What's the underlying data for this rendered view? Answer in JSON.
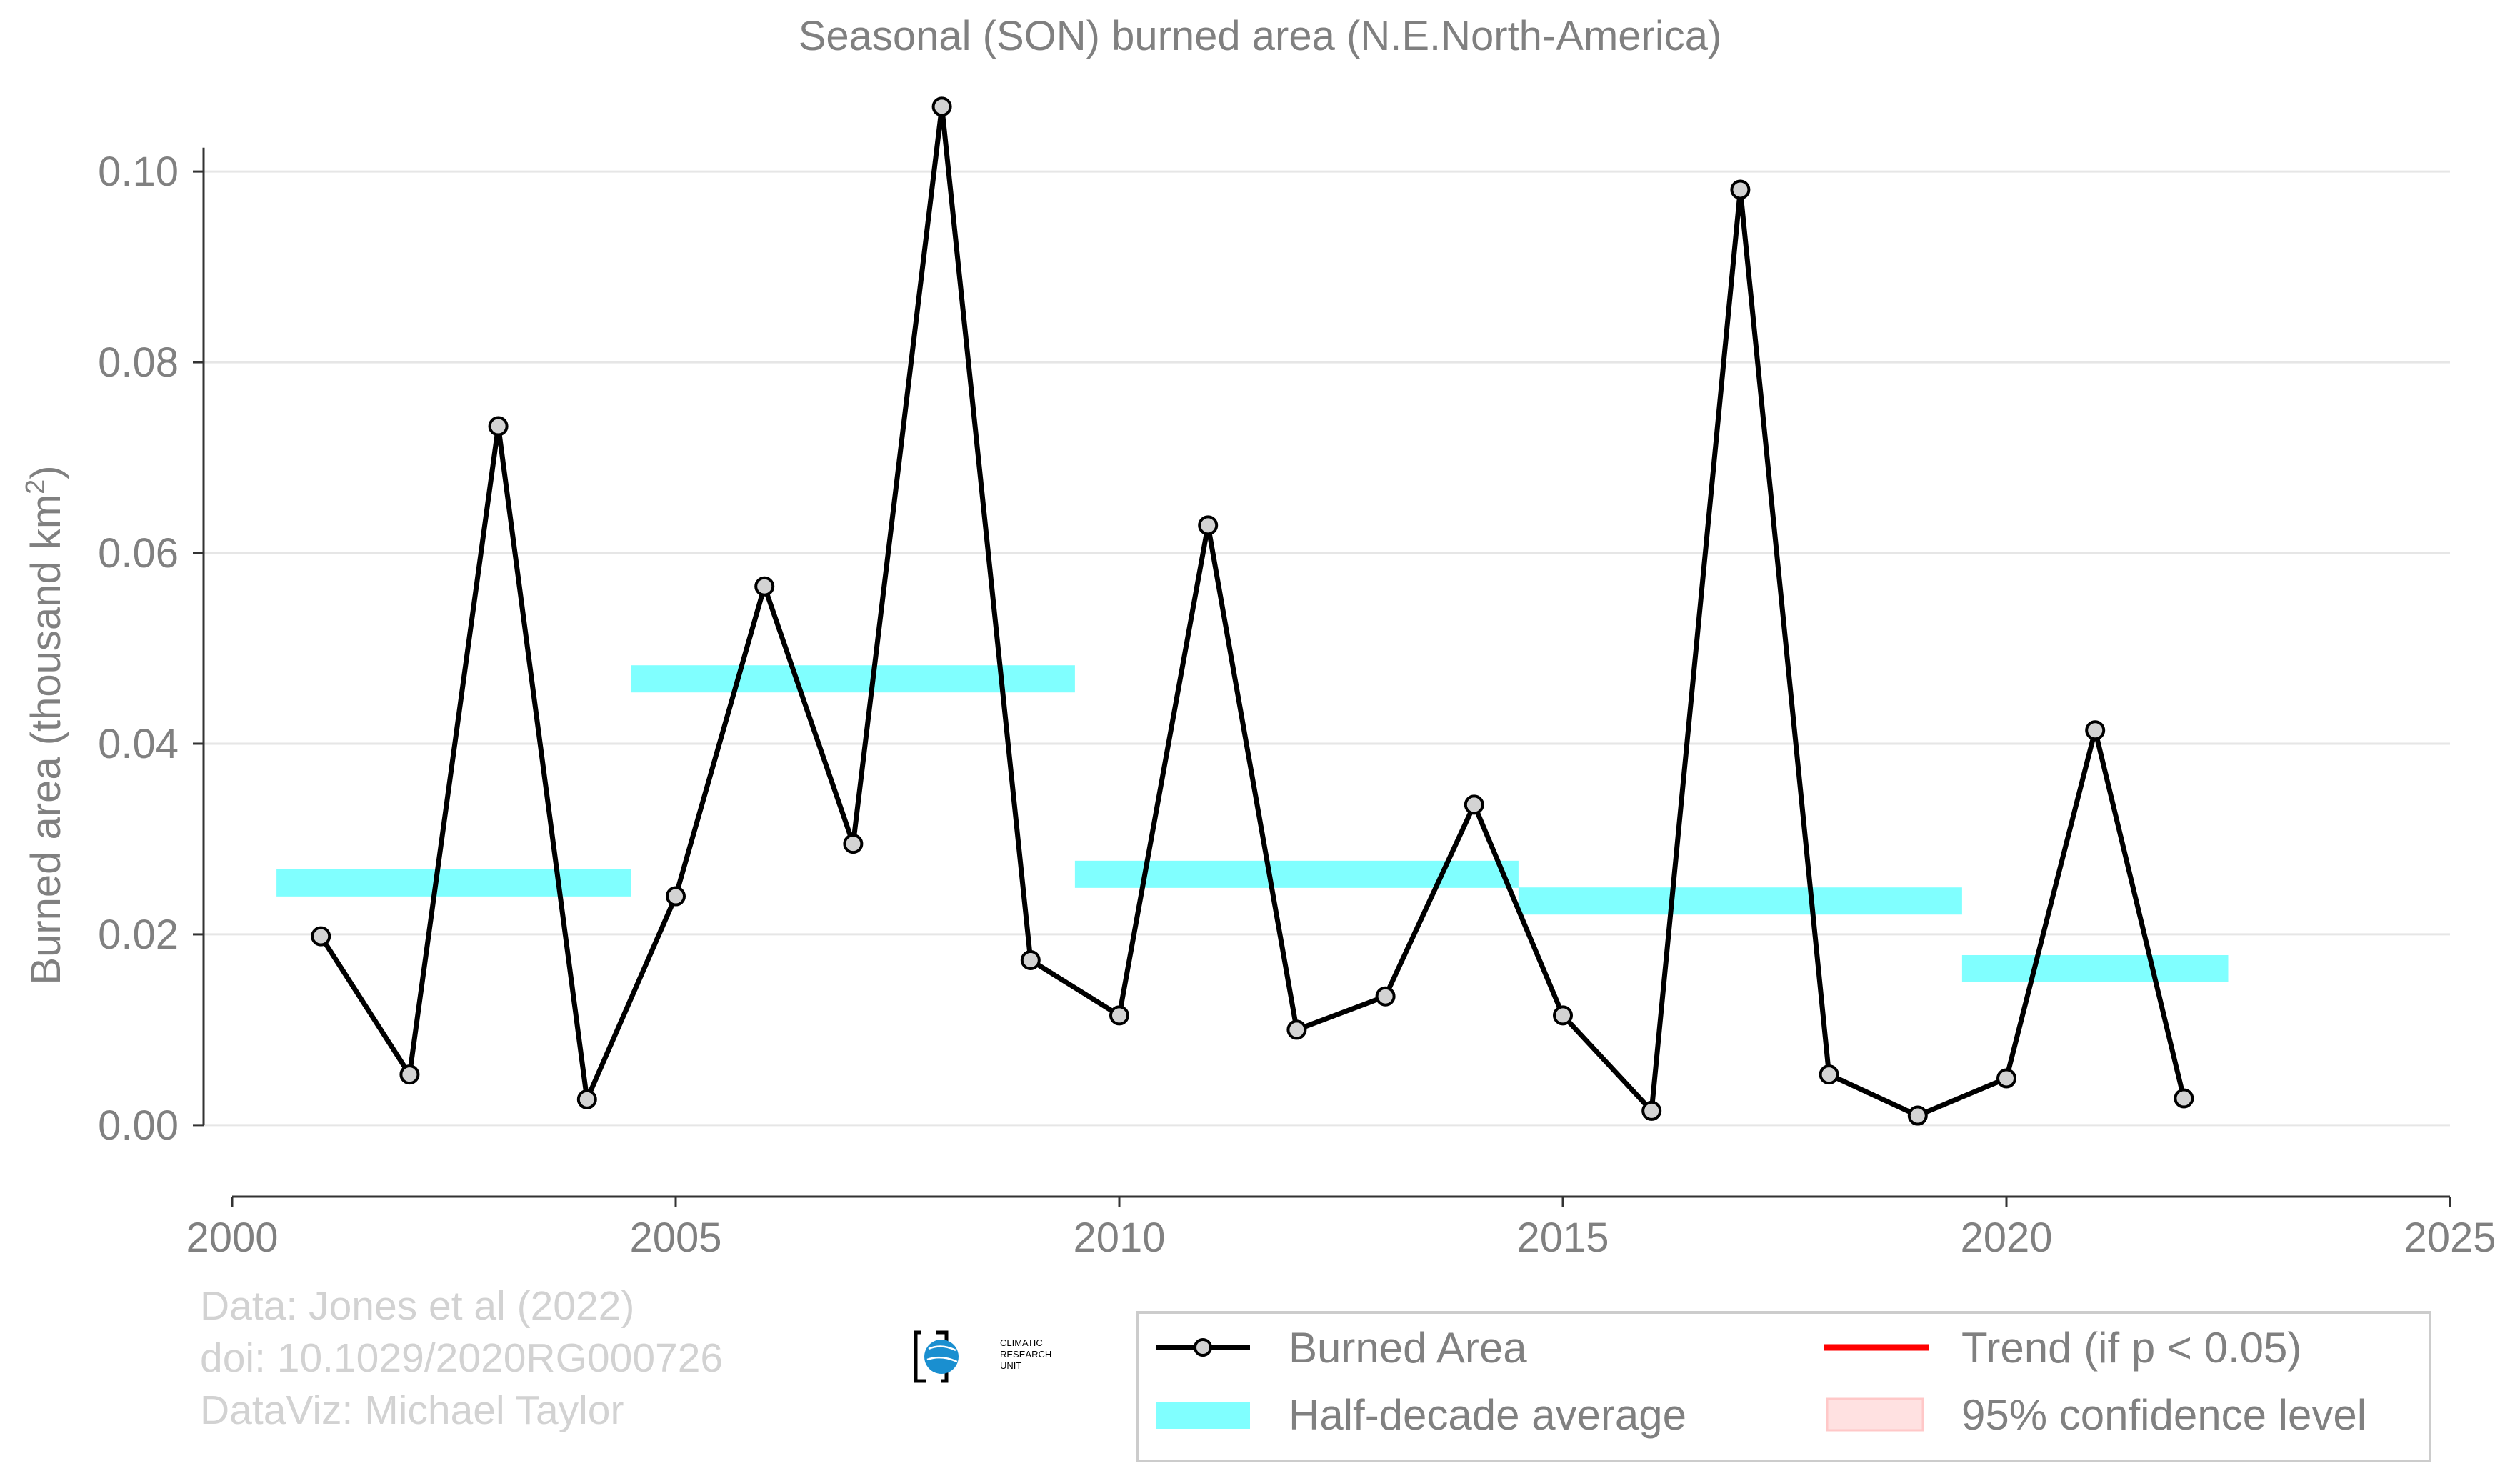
{
  "chart_data": {
    "type": "line",
    "title": "Seasonal (SON) burned area (N.E.North-America)",
    "ylabel_main": "Burned area (thousand km",
    "ylabel_sup": "2",
    "ylabel_end": ")",
    "xlim": [
      2000,
      2025
    ],
    "ylim": [
      -0.0075,
      0.1075
    ],
    "x_ticks": [
      2000,
      2005,
      2010,
      2015,
      2020,
      2025
    ],
    "x_tick_labels": [
      "2000",
      "2005",
      "2010",
      "2015",
      "2020",
      "2025"
    ],
    "y_ticks": [
      0.0,
      0.02,
      0.04,
      0.06,
      0.08,
      0.1
    ],
    "y_tick_labels": [
      "0.00",
      "0.02",
      "0.04",
      "0.06",
      "0.08",
      "0.10"
    ],
    "grid": "horizontal",
    "legend_placement": "bottom-right",
    "series": [
      {
        "name": "Burned Area",
        "color": "#000000",
        "marker_fill": "#d3d3d3",
        "x": [
          2001,
          2002,
          2003,
          2004,
          2005,
          2006,
          2007,
          2008,
          2009,
          2010,
          2011,
          2012,
          2013,
          2014,
          2015,
          2016,
          2017,
          2018,
          2019,
          2020,
          2021,
          2022
        ],
        "y": [
          0.0198,
          0.0053,
          0.0733,
          0.0027,
          0.024,
          0.0565,
          0.0295,
          0.1068,
          0.0173,
          0.0115,
          0.0629,
          0.01,
          0.0135,
          0.0336,
          0.0115,
          0.0015,
          0.0981,
          0.0053,
          0.001,
          0.0049,
          0.0414,
          0.0028
        ]
      },
      {
        "name": "Half-decade average",
        "color": "#80ffff",
        "segments": [
          {
            "x_start": 2000.5,
            "x_end": 2004.5,
            "y": 0.0254
          },
          {
            "x_start": 2004.5,
            "x_end": 2009.5,
            "y": 0.0468
          },
          {
            "x_start": 2009.5,
            "x_end": 2014.5,
            "y": 0.0263
          },
          {
            "x_start": 2014.5,
            "x_end": 2019.5,
            "y": 0.0235
          },
          {
            "x_start": 2019.5,
            "x_end": 2022.5,
            "y": 0.0164
          }
        ]
      }
    ],
    "legend": [
      {
        "label": "Burned Area",
        "kind": "line-marker",
        "color": "#000000",
        "marker_fill": "#d3d3d3"
      },
      {
        "label": "Trend (if p < 0.05)",
        "kind": "line",
        "color": "#ff0000"
      },
      {
        "label": "Half-decade average",
        "kind": "band",
        "color": "#80ffff"
      },
      {
        "label": "95% confidence level",
        "kind": "patch",
        "color": "#ffe1e1",
        "edge": "#ffc8c8"
      }
    ]
  },
  "credits": {
    "line1": "Data: Jones et al (2022)",
    "line2": "doi: 10.1029/2020RG000726",
    "line3": "DataViz: Michael Taylor"
  },
  "logo": {
    "line1": "CLIMATIC",
    "line2": "RESEARCH",
    "line3": "UNIT",
    "color": "#1a8fd0"
  }
}
